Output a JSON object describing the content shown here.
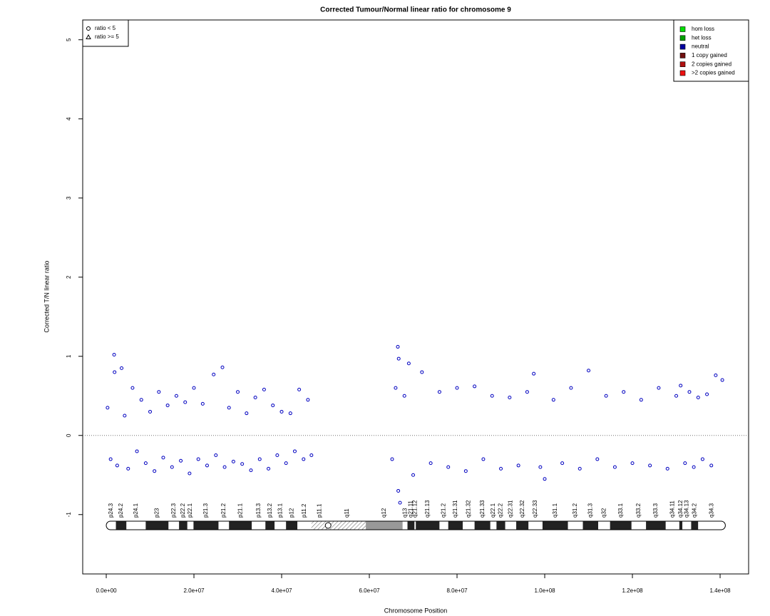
{
  "chart_data": {
    "type": "scatter",
    "title": "Corrected Tumour/Normal linear ratio for chromosome  9",
    "x_label": "Chromosome Position",
    "y_label": "Corrected T/N linear ratio",
    "xlim": [
      -5370000,
      146500000
    ],
    "ylim": [
      -1.75,
      5.25
    ],
    "xticks": [
      {
        "value": 0,
        "label": "0.0e+00"
      },
      {
        "value": 20000000,
        "label": "2.0e+07"
      },
      {
        "value": 40000000,
        "label": "4.0e+07"
      },
      {
        "value": 60000000,
        "label": "6.0e+07"
      },
      {
        "value": 80000000,
        "label": "8.0e+07"
      },
      {
        "value": 100000000,
        "label": "1.0e+08"
      },
      {
        "value": 120000000,
        "label": "1.2e+08"
      },
      {
        "value": 140000000,
        "label": "1.4e+08"
      }
    ],
    "yticks": [
      -1,
      0,
      1,
      2,
      3,
      4,
      5
    ],
    "hline": 0,
    "color": "#0000c0",
    "x": [
      300000,
      1000000,
      1800000,
      1900000,
      2500000,
      3500000,
      4200000,
      5000000,
      6000000,
      7000000,
      8000000,
      9000000,
      10000000,
      11000000,
      12000000,
      13000000,
      14000000,
      15000000,
      16000000,
      17000000,
      18000000,
      19000000,
      20000000,
      21000000,
      22000000,
      23000000,
      24500000,
      25000000,
      26500000,
      27000000,
      28000000,
      29000000,
      30000000,
      31000000,
      32000000,
      33000000,
      34000000,
      35000000,
      36000000,
      37000000,
      38000000,
      39000000,
      40000000,
      41000000,
      42000000,
      43000000,
      44000000,
      45000000,
      46000000,
      46800000,
      65200000,
      66000000,
      66500000,
      66600000,
      66700000,
      67000000,
      68000000,
      69000000,
      70000000,
      72000000,
      74000000,
      76000000,
      78000000,
      80000000,
      82000000,
      84000000,
      86000000,
      88000000,
      90000000,
      92000000,
      94000000,
      96000000,
      97500000,
      99000000,
      100000000,
      102000000,
      104000000,
      106000000,
      108000000,
      110000000,
      112000000,
      114000000,
      116000000,
      118000000,
      120000000,
      122000000,
      124000000,
      126000000,
      128000000,
      130000000,
      131000000,
      132000000,
      133000000,
      134000000,
      135000000,
      136000000,
      137000000,
      138000000,
      139000000,
      140500000
    ],
    "values": [
      0.35,
      -0.3,
      1.02,
      0.8,
      -0.38,
      0.85,
      0.25,
      -0.42,
      0.6,
      -0.2,
      0.45,
      -0.35,
      0.3,
      -0.45,
      0.55,
      -0.28,
      0.38,
      -0.4,
      0.5,
      -0.32,
      0.42,
      -0.48,
      0.6,
      -0.3,
      0.4,
      -0.38,
      0.77,
      -0.25,
      0.86,
      -0.4,
      0.35,
      -0.33,
      0.55,
      -0.36,
      0.28,
      -0.44,
      0.48,
      -0.3,
      0.58,
      -0.42,
      0.38,
      -0.25,
      0.3,
      -0.35,
      0.28,
      -0.2,
      0.58,
      -0.3,
      0.45,
      -0.25,
      -0.3,
      0.6,
      1.12,
      -0.7,
      0.97,
      -0.85,
      0.5,
      0.91,
      -0.5,
      0.8,
      -0.35,
      0.55,
      -0.4,
      0.6,
      -0.45,
      0.62,
      -0.3,
      0.5,
      -0.42,
      0.48,
      -0.38,
      0.55,
      0.78,
      -0.4,
      -0.55,
      0.45,
      -0.35,
      0.6,
      -0.42,
      0.82,
      -0.3,
      0.5,
      -0.4,
      0.55,
      -0.35,
      0.45,
      -0.38,
      0.6,
      -0.42,
      0.5,
      0.63,
      -0.35,
      0.55,
      -0.4,
      0.48,
      -0.3,
      0.52,
      -0.38,
      0.76,
      0.7
    ],
    "shape_legend": [
      {
        "label": "ratio < 5",
        "shape": "circle"
      },
      {
        "label": "ratio >= 5",
        "shape": "triangle"
      }
    ],
    "legend": [
      {
        "label": "hom loss",
        "color": "#00e000"
      },
      {
        "label": "het loss",
        "color": "#00a000"
      },
      {
        "label": "neutral",
        "color": "#0000a0"
      },
      {
        "label": "1 copy gained",
        "color": "#701010"
      },
      {
        "label": "2 copies gained",
        "color": "#b01010"
      },
      {
        "label": ">2 copies gained",
        "color": "#ee1010"
      }
    ],
    "bands": [
      {
        "name": "p24.3",
        "start": 0,
        "end": 2200000,
        "stain": "gneg"
      },
      {
        "name": "p24.2",
        "start": 2200000,
        "end": 4600000,
        "stain": "gpos"
      },
      {
        "name": "p24.1",
        "start": 4600000,
        "end": 9000000,
        "stain": "gneg"
      },
      {
        "name": "p23",
        "start": 9000000,
        "end": 14200000,
        "stain": "gpos"
      },
      {
        "name": "p22.3",
        "start": 14200000,
        "end": 16600000,
        "stain": "gneg"
      },
      {
        "name": "p22.2",
        "start": 16600000,
        "end": 18500000,
        "stain": "gpos"
      },
      {
        "name": "p22.1",
        "start": 18500000,
        "end": 19900000,
        "stain": "gneg"
      },
      {
        "name": "p21.3",
        "start": 19900000,
        "end": 25600000,
        "stain": "gpos"
      },
      {
        "name": "p21.2",
        "start": 25600000,
        "end": 28000000,
        "stain": "gneg"
      },
      {
        "name": "p21.1",
        "start": 28000000,
        "end": 33200000,
        "stain": "gpos"
      },
      {
        "name": "p13.3",
        "start": 33200000,
        "end": 36300000,
        "stain": "gneg"
      },
      {
        "name": "p13.2",
        "start": 36300000,
        "end": 38400000,
        "stain": "gpos"
      },
      {
        "name": "p13.1",
        "start": 38400000,
        "end": 41000000,
        "stain": "gneg"
      },
      {
        "name": "p12",
        "start": 41000000,
        "end": 43600000,
        "stain": "gpos"
      },
      {
        "name": "p11.2",
        "start": 43600000,
        "end": 46800000,
        "stain": "gneg"
      },
      {
        "name": "p11.1",
        "start": 46800000,
        "end": 50600000,
        "stain": "acen"
      },
      {
        "name": "q11",
        "start": 50600000,
        "end": 59200000,
        "stain": "acen"
      },
      {
        "name": "q12",
        "start": 59200000,
        "end": 67600000,
        "stain": "gvar"
      },
      {
        "name": "q13",
        "start": 67600000,
        "end": 68700000,
        "stain": "gneg"
      },
      {
        "name": "q21.11",
        "start": 68700000,
        "end": 70300000,
        "stain": "gpos"
      },
      {
        "name": "q21.12",
        "start": 70300000,
        "end": 70600000,
        "stain": "gneg"
      },
      {
        "name": "q21.13",
        "start": 70600000,
        "end": 76000000,
        "stain": "gpos"
      },
      {
        "name": "q21.2",
        "start": 76000000,
        "end": 78000000,
        "stain": "gneg"
      },
      {
        "name": "q21.31",
        "start": 78000000,
        "end": 81300000,
        "stain": "gpos"
      },
      {
        "name": "q21.32",
        "start": 81300000,
        "end": 84000000,
        "stain": "gneg"
      },
      {
        "name": "q21.33",
        "start": 84000000,
        "end": 87600000,
        "stain": "gpos"
      },
      {
        "name": "q22.1",
        "start": 87600000,
        "end": 89000000,
        "stain": "gneg"
      },
      {
        "name": "q22.2",
        "start": 89000000,
        "end": 91000000,
        "stain": "gpos"
      },
      {
        "name": "q22.31",
        "start": 91000000,
        "end": 93500000,
        "stain": "gneg"
      },
      {
        "name": "q22.32",
        "start": 93500000,
        "end": 96300000,
        "stain": "gpos"
      },
      {
        "name": "q22.33",
        "start": 96300000,
        "end": 99500000,
        "stain": "gneg"
      },
      {
        "name": "q31.1",
        "start": 99500000,
        "end": 105300000,
        "stain": "gpos"
      },
      {
        "name": "q31.2",
        "start": 105300000,
        "end": 108700000,
        "stain": "gneg"
      },
      {
        "name": "q31.3",
        "start": 108700000,
        "end": 112200000,
        "stain": "gpos"
      },
      {
        "name": "q32",
        "start": 112200000,
        "end": 114900000,
        "stain": "gneg"
      },
      {
        "name": "q33.1",
        "start": 114900000,
        "end": 119800000,
        "stain": "gpos"
      },
      {
        "name": "q33.2",
        "start": 119800000,
        "end": 123100000,
        "stain": "gneg"
      },
      {
        "name": "q33.3",
        "start": 123100000,
        "end": 127600000,
        "stain": "gpos"
      },
      {
        "name": "q34.11",
        "start": 127600000,
        "end": 130700000,
        "stain": "gneg"
      },
      {
        "name": "q34.12",
        "start": 130700000,
        "end": 131400000,
        "stain": "gpos"
      },
      {
        "name": "q34.13",
        "start": 131400000,
        "end": 133400000,
        "stain": "gneg"
      },
      {
        "name": "q34.2",
        "start": 133400000,
        "end": 135000000,
        "stain": "gpos"
      },
      {
        "name": "q34.3",
        "start": 135000000,
        "end": 141200000,
        "stain": "gneg"
      }
    ]
  }
}
